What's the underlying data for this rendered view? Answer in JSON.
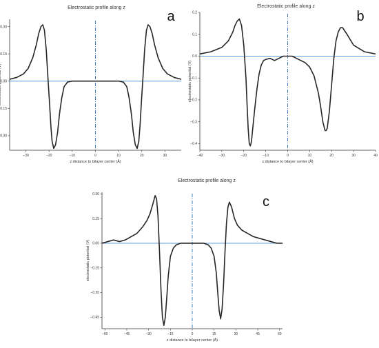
{
  "colors": {
    "curve": "#262626",
    "zero_line": "#5b9bd5",
    "center_line": "#3f7fbf",
    "axis": "#333333"
  },
  "chart_data": [
    {
      "id": "a",
      "panel_label": "a",
      "type": "line",
      "title": "Electrostatic profile along z",
      "xlabel": "z distance to bilayer center (Å)",
      "ylabel": "electrostatic potential (V)",
      "xlim": [
        -37,
        37
      ],
      "ylim": [
        -0.38,
        0.34
      ],
      "xticks": [
        {
          "v": -30,
          "label": "−30"
        },
        {
          "v": -20,
          "label": "−20"
        },
        {
          "v": -10,
          "label": "−10"
        },
        {
          "v": 0,
          "label": "0"
        },
        {
          "v": 10,
          "label": "10"
        },
        {
          "v": 20,
          "label": "20"
        },
        {
          "v": 30,
          "label": "30"
        }
      ],
      "yticks": [
        {
          "v": 0.3,
          "label": "0.30"
        },
        {
          "v": 0.15,
          "label": "0.15"
        },
        {
          "v": 0.0,
          "label": "0.00"
        },
        {
          "v": -0.15,
          "label": "−0.15"
        },
        {
          "v": -0.3,
          "label": "−0.30"
        }
      ],
      "grid": false,
      "reference_lines": {
        "horizontal_y": 0,
        "vertical_x": 0
      },
      "series": [
        {
          "x": [
            -37,
            -34,
            -31,
            -29,
            -27,
            -25.5,
            -24.5,
            -23.5,
            -22.7,
            -22,
            -21.2,
            -20.5,
            -19.8,
            -19.2,
            -18.7,
            -18,
            -17.2,
            -16.3,
            -15.5,
            -14.5,
            -13.5,
            -12,
            -10,
            -5,
            0,
            5,
            10,
            12,
            13.5,
            14.5,
            15.5,
            16.3,
            17.2,
            18,
            18.7,
            19.2,
            19.8,
            20.5,
            21.2,
            22,
            22.7,
            23.5,
            24.5,
            25.5,
            27,
            29,
            31,
            34,
            37
          ],
          "y": [
            0.01,
            0.02,
            0.04,
            0.07,
            0.13,
            0.2,
            0.26,
            0.3,
            0.31,
            0.28,
            0.17,
            0.02,
            -0.12,
            -0.25,
            -0.33,
            -0.37,
            -0.35,
            -0.28,
            -0.18,
            -0.09,
            -0.03,
            -0.005,
            0.0,
            0.0,
            0.0,
            0.0,
            0.0,
            -0.005,
            -0.03,
            -0.09,
            -0.18,
            -0.28,
            -0.35,
            -0.37,
            -0.33,
            -0.25,
            -0.12,
            0.02,
            0.17,
            0.28,
            0.31,
            0.3,
            0.26,
            0.2,
            0.13,
            0.07,
            0.04,
            0.02,
            0.01
          ]
        }
      ]
    },
    {
      "id": "b",
      "panel_label": "b",
      "type": "line",
      "title": "Electrostatic profile along z",
      "xlabel": "z distance to bilayer center (Å)",
      "ylabel": "electrostatic potential (V)",
      "xlim": [
        -40,
        40
      ],
      "ylim": [
        -0.43,
        0.2
      ],
      "xticks": [
        {
          "v": -40,
          "label": "−40"
        },
        {
          "v": -30,
          "label": "−30"
        },
        {
          "v": -20,
          "label": "−20"
        },
        {
          "v": -10,
          "label": "−10"
        },
        {
          "v": 0,
          "label": "0"
        },
        {
          "v": 10,
          "label": "10"
        },
        {
          "v": 20,
          "label": "20"
        },
        {
          "v": 30,
          "label": "30"
        },
        {
          "v": 40,
          "label": "40"
        }
      ],
      "yticks": [
        {
          "v": 0.2,
          "label": "0.2"
        },
        {
          "v": 0.1,
          "label": "0.1"
        },
        {
          "v": 0.0,
          "label": "0.0"
        },
        {
          "v": -0.1,
          "label": "−0.1"
        },
        {
          "v": -0.2,
          "label": "−0.2"
        },
        {
          "v": -0.3,
          "label": "−0.3"
        },
        {
          "v": -0.4,
          "label": "−0.4"
        }
      ],
      "grid": false,
      "reference_lines": {
        "horizontal_y": 0,
        "vertical_x": 0
      },
      "series": [
        {
          "x": [
            -40,
            -35,
            -30,
            -27,
            -25,
            -24,
            -23,
            -22,
            -21,
            -20,
            -19,
            -18.5,
            -18,
            -17.5,
            -17,
            -16.5,
            -16,
            -15,
            -14,
            -13,
            -12,
            -11,
            -10,
            -8,
            -6,
            -4,
            -2,
            0,
            2,
            4,
            6,
            8,
            10,
            12,
            14,
            15,
            16,
            17,
            17.5,
            18,
            19,
            20,
            21,
            22,
            23,
            24,
            25,
            27,
            30,
            35,
            40
          ],
          "y": [
            0.01,
            0.02,
            0.04,
            0.07,
            0.11,
            0.14,
            0.16,
            0.17,
            0.14,
            0.05,
            -0.1,
            -0.22,
            -0.33,
            -0.4,
            -0.41,
            -0.39,
            -0.34,
            -0.24,
            -0.15,
            -0.08,
            -0.04,
            -0.02,
            -0.015,
            -0.01,
            -0.02,
            -0.01,
            0.0,
            0.0,
            0.0,
            -0.01,
            -0.02,
            -0.03,
            -0.05,
            -0.09,
            -0.17,
            -0.23,
            -0.3,
            -0.34,
            -0.34,
            -0.33,
            -0.25,
            -0.13,
            -0.01,
            0.07,
            0.11,
            0.13,
            0.13,
            0.1,
            0.05,
            0.02,
            0.01
          ]
        }
      ]
    },
    {
      "id": "c",
      "panel_label": "c",
      "type": "line",
      "title": "Electrostatic profile along z",
      "xlabel": "z distance to bilayer center (Å)",
      "ylabel": "electrostatic potential (V)",
      "xlim": [
        -62,
        62
      ],
      "ylim": [
        -0.52,
        0.31
      ],
      "xticks": [
        {
          "v": -60,
          "label": "−60"
        },
        {
          "v": -45,
          "label": "−45"
        },
        {
          "v": -30,
          "label": "−30"
        },
        {
          "v": -15,
          "label": "−15"
        },
        {
          "v": 0,
          "label": "0"
        },
        {
          "v": 15,
          "label": "15"
        },
        {
          "v": 30,
          "label": "30"
        },
        {
          "v": 45,
          "label": "45"
        },
        {
          "v": 60,
          "label": "60"
        }
      ],
      "yticks": [
        {
          "v": 0.3,
          "label": "0.30"
        },
        {
          "v": 0.15,
          "label": "0.15"
        },
        {
          "v": 0.0,
          "label": "0.00"
        },
        {
          "v": -0.15,
          "label": "−0.15"
        },
        {
          "v": -0.3,
          "label": "−0.30"
        },
        {
          "v": -0.45,
          "label": "−0.45"
        }
      ],
      "grid": false,
      "reference_lines": {
        "horizontal_y": 0,
        "vertical_x": 0
      },
      "series": [
        {
          "x": [
            -62,
            -58,
            -54,
            -50,
            -46,
            -42,
            -38,
            -34,
            -31,
            -29,
            -27,
            -25.5,
            -24.5,
            -23.5,
            -22.5,
            -21.5,
            -20.5,
            -19.5,
            -18.5,
            -17.5,
            -16.5,
            -15,
            -13,
            -11,
            -8,
            -4,
            0,
            4,
            8,
            11,
            13,
            15,
            16.5,
            17.5,
            18.5,
            19.5,
            20.5,
            21.5,
            22.5,
            23.5,
            24.5,
            25.5,
            27,
            29,
            31,
            34,
            38,
            42,
            46,
            50,
            54,
            58,
            62
          ],
          "y": [
            0.0,
            0.01,
            0.02,
            0.01,
            0.02,
            0.04,
            0.06,
            0.1,
            0.14,
            0.18,
            0.24,
            0.29,
            0.27,
            0.16,
            -0.05,
            -0.28,
            -0.45,
            -0.5,
            -0.45,
            -0.33,
            -0.2,
            -0.08,
            -0.03,
            -0.01,
            0.0,
            0.0,
            0.0,
            0.0,
            0.0,
            -0.01,
            -0.03,
            -0.08,
            -0.18,
            -0.3,
            -0.41,
            -0.46,
            -0.4,
            -0.25,
            -0.05,
            0.12,
            0.22,
            0.25,
            0.22,
            0.15,
            0.11,
            0.08,
            0.06,
            0.04,
            0.03,
            0.02,
            0.01,
            0.0,
            0.0
          ]
        }
      ]
    }
  ]
}
